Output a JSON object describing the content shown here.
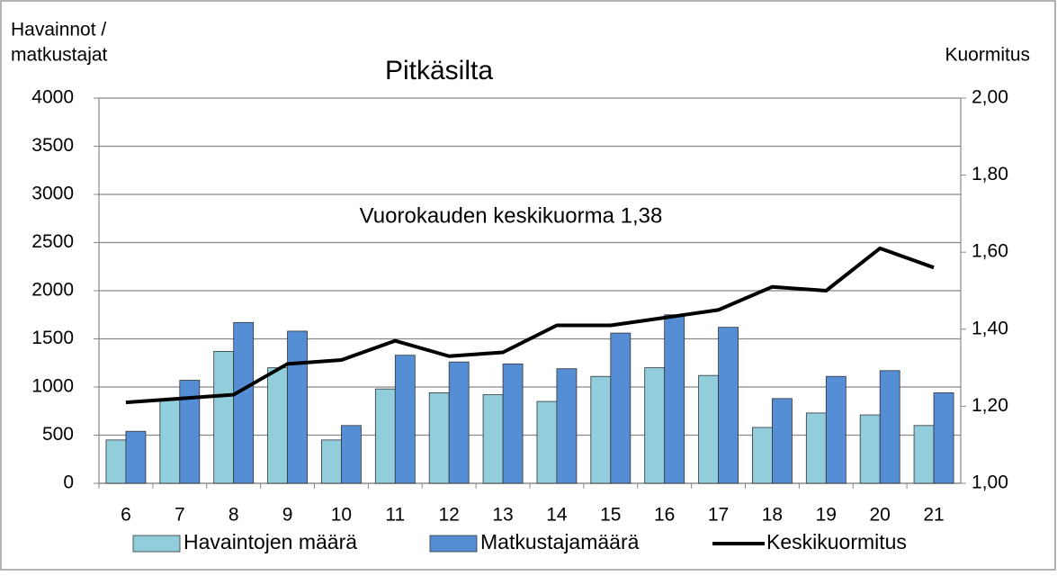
{
  "chart_data": {
    "type": "bar",
    "title": "Pitkäsilta",
    "ylabel": [
      "Havainnot /",
      "matkustajat"
    ],
    "y2label": "Kuormitus",
    "annotation": "Vuorokauden keskikuorma 1,38",
    "categories": [
      "6",
      "7",
      "8",
      "9",
      "10",
      "11",
      "12",
      "13",
      "14",
      "15",
      "16",
      "17",
      "18",
      "19",
      "20",
      "21"
    ],
    "series": [
      {
        "name": "Havaintojen määrä",
        "type": "bar",
        "color": "#92cddc",
        "values": [
          450,
          870,
          1370,
          1200,
          450,
          980,
          940,
          920,
          850,
          1110,
          1200,
          1120,
          580,
          730,
          710,
          600
        ]
      },
      {
        "name": "Matkustajamäärä",
        "type": "bar",
        "color": "#558ed5",
        "values": [
          540,
          1070,
          1670,
          1580,
          600,
          1330,
          1260,
          1240,
          1190,
          1560,
          1750,
          1620,
          880,
          1110,
          1170,
          940
        ]
      },
      {
        "name": "Keskikuormitus",
        "type": "line",
        "axis": "y2",
        "color": "#000000",
        "values": [
          1.21,
          1.22,
          1.23,
          1.31,
          1.32,
          1.37,
          1.33,
          1.34,
          1.41,
          1.41,
          1.43,
          1.45,
          1.51,
          1.5,
          1.61,
          1.56
        ]
      }
    ],
    "ylim": [
      0,
      4000
    ],
    "yticks": [
      0,
      500,
      1000,
      1500,
      2000,
      2500,
      3000,
      3500,
      4000
    ],
    "y2lim": [
      1.0,
      2.0
    ],
    "y2ticks": [
      {
        "value": 1.0,
        "label": "1,00"
      },
      {
        "value": 1.2,
        "label": "1,20"
      },
      {
        "value": 1.4,
        "label": "1,40"
      },
      {
        "value": 1.6,
        "label": "1,60"
      },
      {
        "value": 1.8,
        "label": "1,80"
      },
      {
        "value": 2.0,
        "label": "2,00"
      }
    ],
    "grid": true,
    "legend": "bottom"
  }
}
